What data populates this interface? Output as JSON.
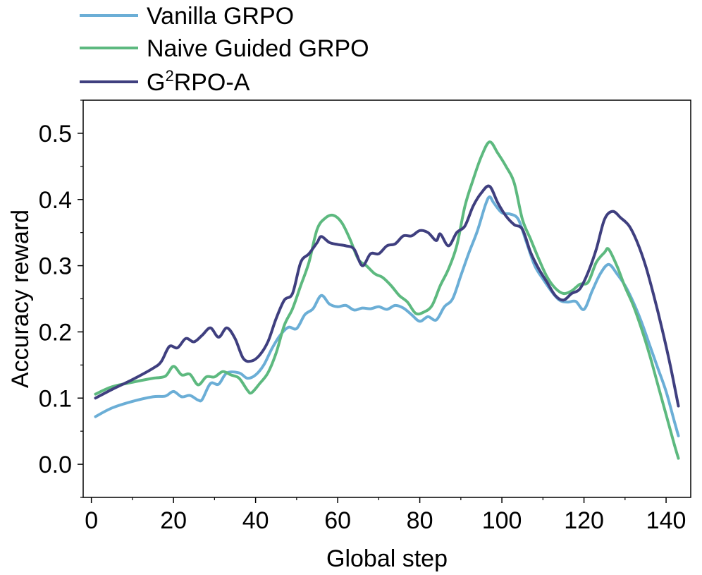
{
  "chart_data": {
    "type": "line",
    "title": "",
    "xlabel": "Global step",
    "ylabel": "Accuracy reward",
    "xlim": [
      -2,
      146
    ],
    "ylim": [
      -0.05,
      0.55
    ],
    "xticks": [
      0,
      20,
      40,
      60,
      80,
      100,
      120,
      140
    ],
    "xtick_labels": [
      "0",
      "20",
      "40",
      "60",
      "80",
      "100",
      "120",
      "140"
    ],
    "yticks": [
      0.0,
      0.1,
      0.2,
      0.3,
      0.4,
      0.5
    ],
    "ytick_labels": [
      "0.0",
      "0.1",
      "0.2",
      "0.3",
      "0.4",
      "0.5"
    ],
    "grid": false,
    "legend_position": "top-left, above plot",
    "series": [
      {
        "name": "Vanilla GRPO",
        "legend_text": "Vanilla GRPO",
        "color": "#6baed6",
        "points": [
          [
            1,
            0.072
          ],
          [
            5,
            0.085
          ],
          [
            10,
            0.095
          ],
          [
            15,
            0.102
          ],
          [
            18,
            0.103
          ],
          [
            20,
            0.11
          ],
          [
            22,
            0.102
          ],
          [
            24,
            0.104
          ],
          [
            26,
            0.097
          ],
          [
            27,
            0.098
          ],
          [
            29,
            0.122
          ],
          [
            31,
            0.121
          ],
          [
            33,
            0.138
          ],
          [
            36,
            0.138
          ],
          [
            38,
            0.13
          ],
          [
            40,
            0.135
          ],
          [
            42,
            0.15
          ],
          [
            44,
            0.175
          ],
          [
            46,
            0.195
          ],
          [
            48,
            0.207
          ],
          [
            50,
            0.205
          ],
          [
            52,
            0.226
          ],
          [
            54,
            0.235
          ],
          [
            56,
            0.255
          ],
          [
            58,
            0.242
          ],
          [
            60,
            0.238
          ],
          [
            62,
            0.24
          ],
          [
            64,
            0.233
          ],
          [
            66,
            0.236
          ],
          [
            68,
            0.235
          ],
          [
            70,
            0.238
          ],
          [
            72,
            0.234
          ],
          [
            74,
            0.24
          ],
          [
            76,
            0.236
          ],
          [
            78,
            0.226
          ],
          [
            80,
            0.216
          ],
          [
            82,
            0.223
          ],
          [
            84,
            0.218
          ],
          [
            86,
            0.238
          ],
          [
            88,
            0.25
          ],
          [
            90,
            0.285
          ],
          [
            92,
            0.32
          ],
          [
            94,
            0.352
          ],
          [
            96,
            0.392
          ],
          [
            97,
            0.404
          ],
          [
            98,
            0.395
          ],
          [
            100,
            0.38
          ],
          [
            102,
            0.378
          ],
          [
            104,
            0.37
          ],
          [
            106,
            0.335
          ],
          [
            108,
            0.3
          ],
          [
            110,
            0.28
          ],
          [
            112,
            0.262
          ],
          [
            114,
            0.248
          ],
          [
            116,
            0.245
          ],
          [
            118,
            0.246
          ],
          [
            120,
            0.234
          ],
          [
            122,
            0.262
          ],
          [
            124,
            0.288
          ],
          [
            126,
            0.302
          ],
          [
            128,
            0.288
          ],
          [
            130,
            0.27
          ],
          [
            132,
            0.245
          ],
          [
            134,
            0.215
          ],
          [
            136,
            0.18
          ],
          [
            138,
            0.145
          ],
          [
            140,
            0.11
          ],
          [
            142,
            0.065
          ],
          [
            143,
            0.043
          ]
        ]
      },
      {
        "name": "Naive Guided GRPO",
        "legend_text": "Naive Guided GRPO",
        "color": "#5db97f",
        "points": [
          [
            1,
            0.106
          ],
          [
            5,
            0.117
          ],
          [
            10,
            0.124
          ],
          [
            15,
            0.13
          ],
          [
            18,
            0.133
          ],
          [
            20,
            0.148
          ],
          [
            22,
            0.135
          ],
          [
            24,
            0.136
          ],
          [
            26,
            0.12
          ],
          [
            28,
            0.132
          ],
          [
            30,
            0.132
          ],
          [
            32,
            0.14
          ],
          [
            34,
            0.135
          ],
          [
            36,
            0.13
          ],
          [
            38,
            0.112
          ],
          [
            39,
            0.108
          ],
          [
            41,
            0.122
          ],
          [
            43,
            0.138
          ],
          [
            45,
            0.168
          ],
          [
            47,
            0.21
          ],
          [
            49,
            0.235
          ],
          [
            51,
            0.27
          ],
          [
            53,
            0.305
          ],
          [
            55,
            0.355
          ],
          [
            57,
            0.372
          ],
          [
            59,
            0.376
          ],
          [
            61,
            0.365
          ],
          [
            63,
            0.34
          ],
          [
            65,
            0.31
          ],
          [
            67,
            0.3
          ],
          [
            69,
            0.288
          ],
          [
            71,
            0.282
          ],
          [
            73,
            0.27
          ],
          [
            75,
            0.255
          ],
          [
            77,
            0.245
          ],
          [
            79,
            0.228
          ],
          [
            81,
            0.23
          ],
          [
            83,
            0.24
          ],
          [
            85,
            0.27
          ],
          [
            87,
            0.295
          ],
          [
            89,
            0.33
          ],
          [
            91,
            0.39
          ],
          [
            93,
            0.43
          ],
          [
            95,
            0.465
          ],
          [
            97,
            0.487
          ],
          [
            99,
            0.47
          ],
          [
            101,
            0.45
          ],
          [
            103,
            0.425
          ],
          [
            105,
            0.37
          ],
          [
            107,
            0.34
          ],
          [
            109,
            0.31
          ],
          [
            111,
            0.283
          ],
          [
            113,
            0.266
          ],
          [
            115,
            0.258
          ],
          [
            117,
            0.262
          ],
          [
            119,
            0.272
          ],
          [
            121,
            0.275
          ],
          [
            123,
            0.305
          ],
          [
            125,
            0.32
          ],
          [
            126,
            0.325
          ],
          [
            128,
            0.3
          ],
          [
            130,
            0.268
          ],
          [
            132,
            0.24
          ],
          [
            134,
            0.205
          ],
          [
            136,
            0.165
          ],
          [
            138,
            0.12
          ],
          [
            140,
            0.075
          ],
          [
            142,
            0.03
          ],
          [
            143,
            0.009
          ]
        ]
      },
      {
        "name": "G2RPO-A",
        "legend_text": "G",
        "legend_sup": "2",
        "legend_suffix": "RPO-A",
        "color": "#3f3f7f",
        "points": [
          [
            1,
            0.1
          ],
          [
            5,
            0.113
          ],
          [
            10,
            0.128
          ],
          [
            15,
            0.145
          ],
          [
            17,
            0.155
          ],
          [
            19,
            0.178
          ],
          [
            21,
            0.176
          ],
          [
            23,
            0.19
          ],
          [
            25,
            0.185
          ],
          [
            27,
            0.195
          ],
          [
            29,
            0.206
          ],
          [
            31,
            0.192
          ],
          [
            33,
            0.206
          ],
          [
            35,
            0.19
          ],
          [
            37,
            0.16
          ],
          [
            39,
            0.156
          ],
          [
            41,
            0.165
          ],
          [
            43,
            0.185
          ],
          [
            45,
            0.22
          ],
          [
            47,
            0.248
          ],
          [
            49,
            0.258
          ],
          [
            51,
            0.305
          ],
          [
            53,
            0.318
          ],
          [
            55,
            0.335
          ],
          [
            56,
            0.344
          ],
          [
            58,
            0.335
          ],
          [
            60,
            0.332
          ],
          [
            62,
            0.33
          ],
          [
            64,
            0.325
          ],
          [
            66,
            0.3
          ],
          [
            68,
            0.318
          ],
          [
            70,
            0.318
          ],
          [
            72,
            0.33
          ],
          [
            74,
            0.333
          ],
          [
            76,
            0.345
          ],
          [
            78,
            0.345
          ],
          [
            80,
            0.353
          ],
          [
            82,
            0.35
          ],
          [
            84,
            0.338
          ],
          [
            85,
            0.348
          ],
          [
            87,
            0.33
          ],
          [
            89,
            0.35
          ],
          [
            91,
            0.36
          ],
          [
            93,
            0.39
          ],
          [
            95,
            0.41
          ],
          [
            97,
            0.42
          ],
          [
            99,
            0.395
          ],
          [
            101,
            0.375
          ],
          [
            103,
            0.362
          ],
          [
            105,
            0.355
          ],
          [
            107,
            0.32
          ],
          [
            109,
            0.295
          ],
          [
            111,
            0.275
          ],
          [
            113,
            0.255
          ],
          [
            115,
            0.248
          ],
          [
            117,
            0.258
          ],
          [
            119,
            0.265
          ],
          [
            121,
            0.29
          ],
          [
            123,
            0.325
          ],
          [
            125,
            0.37
          ],
          [
            127,
            0.382
          ],
          [
            129,
            0.372
          ],
          [
            131,
            0.36
          ],
          [
            133,
            0.335
          ],
          [
            135,
            0.3
          ],
          [
            137,
            0.255
          ],
          [
            139,
            0.205
          ],
          [
            141,
            0.15
          ],
          [
            143,
            0.088
          ]
        ]
      }
    ]
  }
}
